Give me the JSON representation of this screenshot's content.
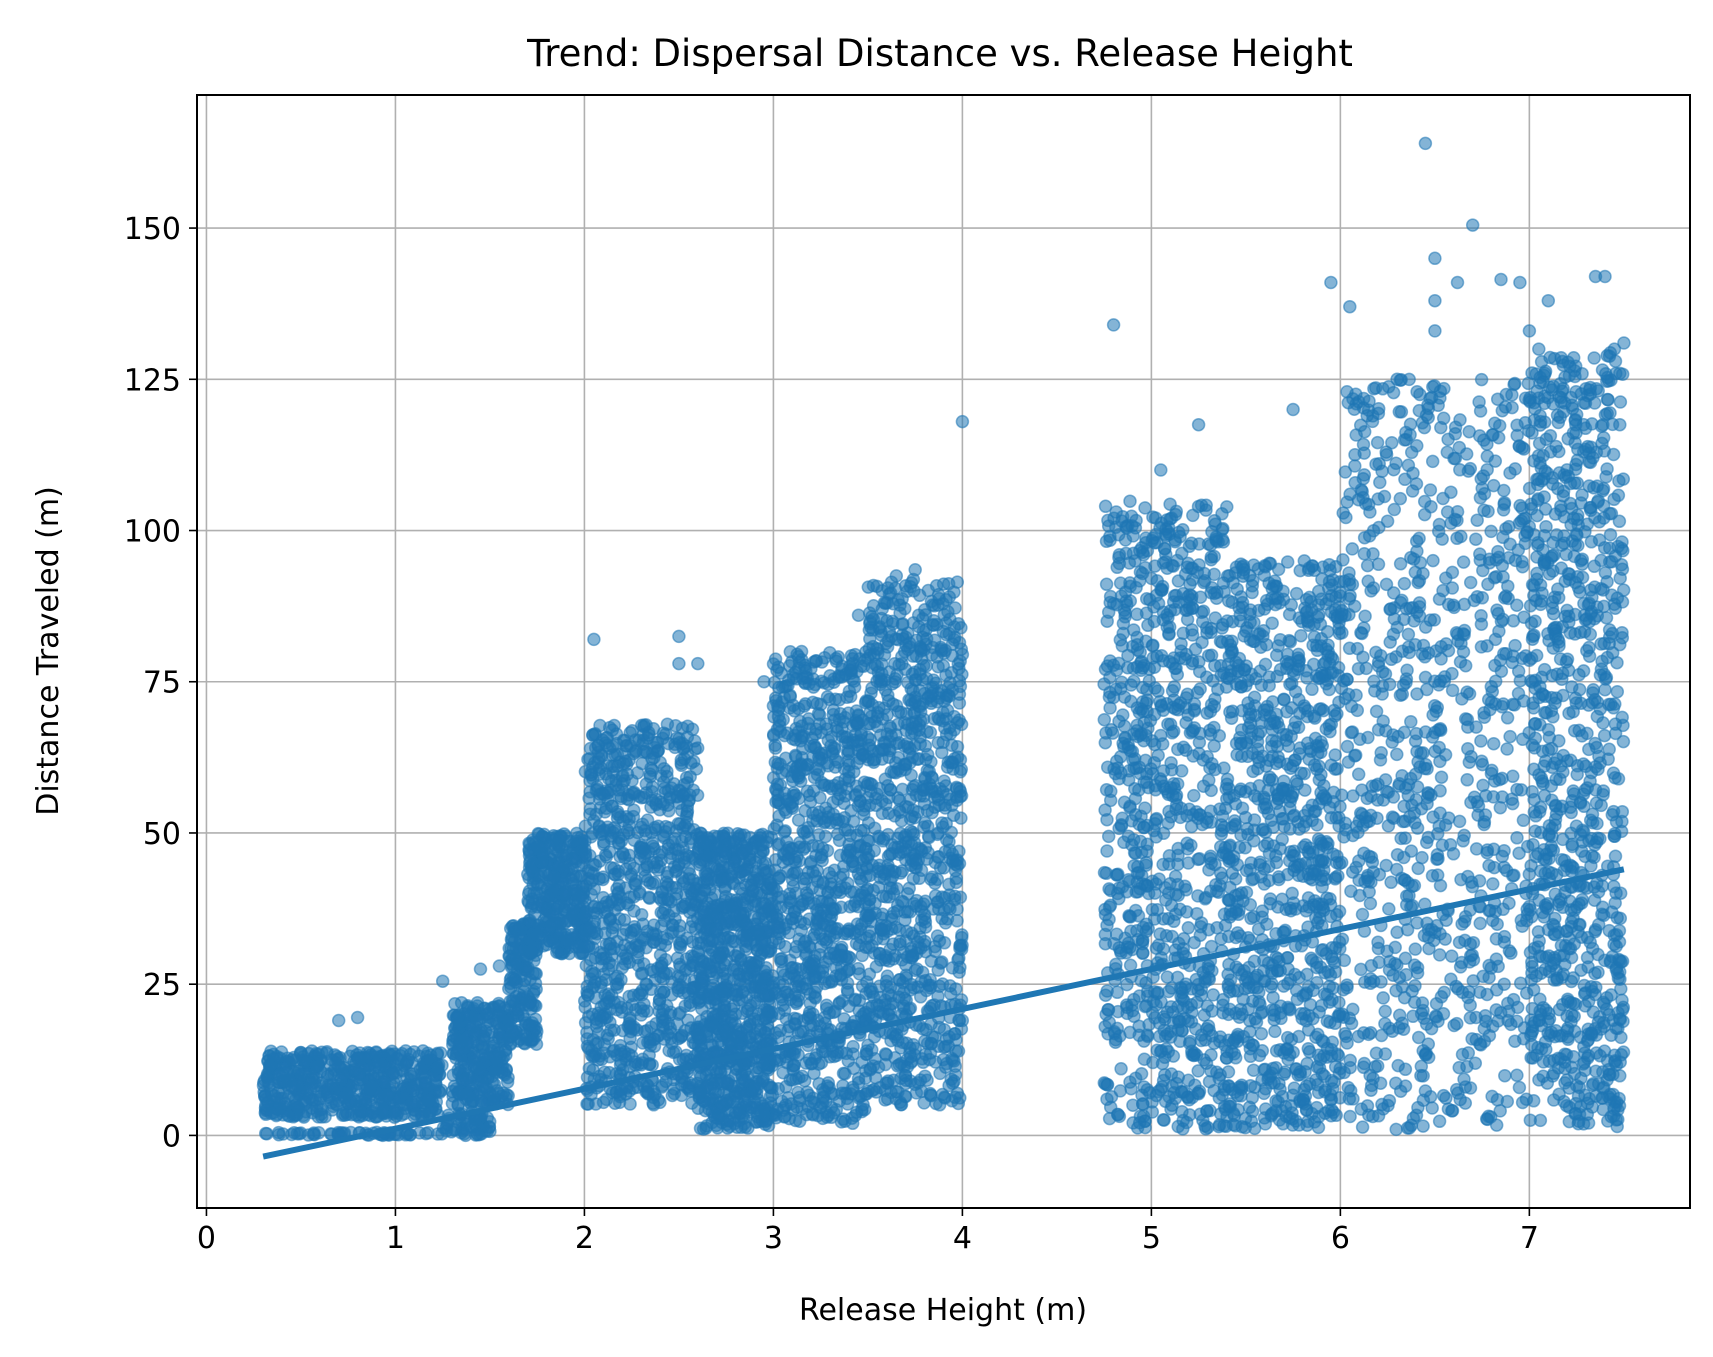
{
  "chart_data": {
    "type": "scatter",
    "title": "Trend: Dispersal Distance vs. Release Height",
    "xlabel": "Release Height (m)",
    "ylabel": "Distance Traveled (m)",
    "xlim": [
      -0.05,
      7.85
    ],
    "ylim": [
      -12,
      172
    ],
    "x_ticks": [
      0,
      1,
      2,
      3,
      4,
      5,
      6,
      7
    ],
    "y_ticks": [
      0,
      25,
      50,
      75,
      100,
      125,
      150
    ],
    "grid": true,
    "legend": "none",
    "series_color": "#1f77b4",
    "point_alpha": 0.55,
    "trend_line": {
      "x": [
        0.3,
        7.5
      ],
      "y": [
        -3.5,
        44
      ]
    },
    "clusters": [
      {
        "x_range": [
          0.3,
          1.25
        ],
        "y_range": [
          0,
          0.5
        ]
      },
      {
        "x_range": [
          0.3,
          1.25
        ],
        "y_range": [
          3,
          14
        ]
      },
      {
        "x_range": [
          1.25,
          1.5
        ],
        "y_range": [
          0,
          4
        ]
      },
      {
        "x_range": [
          1.3,
          1.6
        ],
        "y_range": [
          5,
          22
        ]
      },
      {
        "x_range": [
          1.6,
          1.75
        ],
        "y_range": [
          15,
          35
        ]
      },
      {
        "x_range": [
          1.7,
          2.0
        ],
        "y_range": [
          30,
          50
        ]
      },
      {
        "x_range": [
          2.0,
          2.6
        ],
        "y_range": [
          5,
          68
        ]
      },
      {
        "x_range": [
          2.6,
          3.0
        ],
        "y_range": [
          1,
          50
        ]
      },
      {
        "x_range": [
          3.0,
          3.5
        ],
        "y_range": [
          2,
          80
        ]
      },
      {
        "x_range": [
          3.5,
          4.0
        ],
        "y_range": [
          5,
          92
        ]
      },
      {
        "x_range": [
          4.75,
          5.4
        ],
        "y_range": [
          1,
          105
        ]
      },
      {
        "x_range": [
          5.4,
          6.0
        ],
        "y_range": [
          1,
          95
        ]
      },
      {
        "x_range": [
          6.0,
          7.0
        ],
        "y_range": [
          1,
          125
        ]
      },
      {
        "x_range": [
          7.0,
          7.5
        ],
        "y_range": [
          1,
          130
        ]
      }
    ],
    "outliers": [
      {
        "x": 0.5,
        "y": 10
      },
      {
        "x": 0.7,
        "y": 19
      },
      {
        "x": 0.8,
        "y": 19.5
      },
      {
        "x": 1.25,
        "y": 25.5
      },
      {
        "x": 1.45,
        "y": 27.5
      },
      {
        "x": 1.55,
        "y": 28
      },
      {
        "x": 2.05,
        "y": 82
      },
      {
        "x": 2.5,
        "y": 82.5
      },
      {
        "x": 2.5,
        "y": 78
      },
      {
        "x": 2.6,
        "y": 78
      },
      {
        "x": 2.95,
        "y": 75
      },
      {
        "x": 3.0,
        "y": 71
      },
      {
        "x": 3.3,
        "y": 76
      },
      {
        "x": 3.45,
        "y": 86
      },
      {
        "x": 3.65,
        "y": 92.5
      },
      {
        "x": 3.75,
        "y": 93.5
      },
      {
        "x": 4.0,
        "y": 118
      },
      {
        "x": 4.8,
        "y": 134
      },
      {
        "x": 5.05,
        "y": 110
      },
      {
        "x": 5.25,
        "y": 117.5
      },
      {
        "x": 5.75,
        "y": 120
      },
      {
        "x": 5.95,
        "y": 141
      },
      {
        "x": 6.05,
        "y": 137
      },
      {
        "x": 6.45,
        "y": 164
      },
      {
        "x": 6.5,
        "y": 145
      },
      {
        "x": 6.5,
        "y": 138
      },
      {
        "x": 6.5,
        "y": 133
      },
      {
        "x": 6.62,
        "y": 141
      },
      {
        "x": 6.7,
        "y": 150.5
      },
      {
        "x": 6.85,
        "y": 141.5
      },
      {
        "x": 6.95,
        "y": 141
      },
      {
        "x": 7.0,
        "y": 133
      },
      {
        "x": 7.05,
        "y": 130
      },
      {
        "x": 7.1,
        "y": 138
      },
      {
        "x": 7.35,
        "y": 142
      },
      {
        "x": 7.4,
        "y": 142
      },
      {
        "x": 7.45,
        "y": 130
      },
      {
        "x": 7.5,
        "y": 131
      },
      {
        "x": 6.3,
        "y": 125
      }
    ]
  }
}
